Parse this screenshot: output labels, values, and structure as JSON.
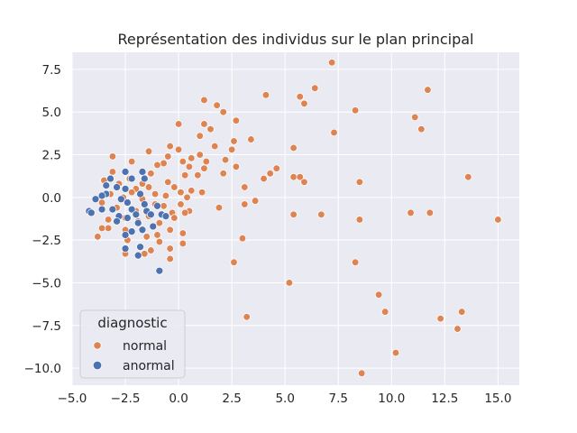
{
  "chart_data": {
    "type": "scatter",
    "title": "Représentation des individus sur le plan principal",
    "xlabel": "",
    "ylabel": "",
    "xlim": [
      -5.0,
      16.0
    ],
    "ylim": [
      -11.0,
      8.5
    ],
    "xticks": [
      -5.0,
      -2.5,
      0.0,
      2.5,
      5.0,
      7.5,
      10.0,
      12.5,
      15.0
    ],
    "xtick_labels": [
      "−5.0",
      "−2.5",
      "0.0",
      "2.5",
      "5.0",
      "7.5",
      "10.0",
      "12.5",
      "15.0"
    ],
    "yticks": [
      7.5,
      5.0,
      2.5,
      0.0,
      -2.5,
      -5.0,
      -7.5,
      -10.0
    ],
    "ytick_labels": [
      "7.5",
      "5.0",
      "2.5",
      "0.0",
      "−2.5",
      "−5.0",
      "−7.5",
      "−10.0"
    ],
    "grid": true,
    "background": "#eaeaf2",
    "legend": {
      "title": "diagnostic",
      "placement": "lower-left",
      "entries": [
        {
          "label": "normal",
          "color": "#dd8452"
        },
        {
          "label": "anormal",
          "color": "#4c72b0"
        }
      ]
    },
    "series": [
      {
        "name": "normal",
        "color": "#dd8452",
        "points": [
          [
            7.2,
            7.9
          ],
          [
            4.1,
            6.0
          ],
          [
            6.4,
            6.4
          ],
          [
            11.7,
            6.3
          ],
          [
            5.7,
            5.9
          ],
          [
            5.9,
            5.5
          ],
          [
            8.3,
            5.1
          ],
          [
            1.2,
            5.7
          ],
          [
            1.8,
            5.4
          ],
          [
            2.1,
            5.0
          ],
          [
            11.1,
            4.7
          ],
          [
            11.4,
            4.0
          ],
          [
            0.0,
            4.3
          ],
          [
            2.7,
            4.5
          ],
          [
            1.2,
            4.3
          ],
          [
            1.5,
            4.0
          ],
          [
            7.3,
            3.8
          ],
          [
            3.4,
            3.4
          ],
          [
            2.6,
            3.3
          ],
          [
            1.0,
            3.6
          ],
          [
            1.7,
            3.0
          ],
          [
            -0.4,
            3.0
          ],
          [
            0.0,
            2.8
          ],
          [
            5.4,
            2.9
          ],
          [
            2.5,
            2.8
          ],
          [
            -1.4,
            2.7
          ],
          [
            -3.1,
            2.4
          ],
          [
            -0.5,
            2.4
          ],
          [
            0.6,
            2.3
          ],
          [
            1.0,
            2.5
          ],
          [
            2.2,
            2.2
          ],
          [
            -2.2,
            2.1
          ],
          [
            1.3,
            2.1
          ],
          [
            -0.7,
            2.0
          ],
          [
            0.2,
            2.1
          ],
          [
            2.7,
            1.8
          ],
          [
            4.6,
            1.7
          ],
          [
            -1.0,
            1.9
          ],
          [
            0.5,
            1.8
          ],
          [
            1.2,
            1.7
          ],
          [
            -3.1,
            1.5
          ],
          [
            4.3,
            1.4
          ],
          [
            0.3,
            1.3
          ],
          [
            2.1,
            1.4
          ],
          [
            5.4,
            1.2
          ],
          [
            5.7,
            1.2
          ],
          [
            4.0,
            1.1
          ],
          [
            -3.5,
            1.0
          ],
          [
            -2.3,
            1.1
          ],
          [
            -1.3,
            1.4
          ],
          [
            0.9,
            1.3
          ],
          [
            5.9,
            0.9
          ],
          [
            8.5,
            0.9
          ],
          [
            13.6,
            1.2
          ],
          [
            -2.8,
            0.8
          ],
          [
            -1.7,
            0.8
          ],
          [
            -0.5,
            0.9
          ],
          [
            -0.2,
            0.6
          ],
          [
            -2.0,
            0.5
          ],
          [
            -1.4,
            0.6
          ],
          [
            0.6,
            0.4
          ],
          [
            3.1,
            0.6
          ],
          [
            -3.2,
            0.2
          ],
          [
            -2.2,
            0.3
          ],
          [
            -1.1,
            0.2
          ],
          [
            0.1,
            0.3
          ],
          [
            1.1,
            0.3
          ],
          [
            -2.6,
            0.0
          ],
          [
            -1.7,
            -0.1
          ],
          [
            -0.6,
            0.1
          ],
          [
            0.4,
            0.0
          ],
          [
            3.6,
            -0.2
          ],
          [
            -3.6,
            -0.3
          ],
          [
            -1.1,
            -0.4
          ],
          [
            0.1,
            -0.4
          ],
          [
            3.1,
            -0.4
          ],
          [
            1.9,
            -0.6
          ],
          [
            -2.9,
            -0.6
          ],
          [
            -2.0,
            -0.8
          ],
          [
            -0.7,
            -0.5
          ],
          [
            0.5,
            -0.8
          ],
          [
            5.4,
            -1.0
          ],
          [
            6.7,
            -1.0
          ],
          [
            10.9,
            -0.9
          ],
          [
            11.8,
            -0.9
          ],
          [
            -3.3,
            -1.3
          ],
          [
            -2.5,
            -1.2
          ],
          [
            -1.4,
            -1.1
          ],
          [
            -0.3,
            -0.9
          ],
          [
            0.3,
            -0.9
          ],
          [
            8.5,
            -1.3
          ],
          [
            15.0,
            -1.3
          ],
          [
            -3.3,
            -1.8
          ],
          [
            -1.9,
            -1.4
          ],
          [
            -0.9,
            -1.5
          ],
          [
            -0.2,
            -1.2
          ],
          [
            -3.6,
            -1.8
          ],
          [
            -2.5,
            -1.9
          ],
          [
            -1.0,
            -2.2
          ],
          [
            -0.4,
            -1.9
          ],
          [
            0.2,
            -2.1
          ],
          [
            -3.8,
            -2.3
          ],
          [
            -2.4,
            -2.5
          ],
          [
            -1.5,
            -2.3
          ],
          [
            -0.9,
            -2.6
          ],
          [
            3.0,
            -2.4
          ],
          [
            0.2,
            -2.7
          ],
          [
            -1.3,
            -3.1
          ],
          [
            -0.4,
            -3.0
          ],
          [
            -2.5,
            -3.3
          ],
          [
            -1.6,
            -3.3
          ],
          [
            -0.4,
            -3.6
          ],
          [
            2.6,
            -3.8
          ],
          [
            8.3,
            -3.8
          ],
          [
            5.2,
            -5.0
          ],
          [
            9.4,
            -5.7
          ],
          [
            9.7,
            -6.7
          ],
          [
            3.2,
            -7.0
          ],
          [
            12.3,
            -7.1
          ],
          [
            13.3,
            -6.7
          ],
          [
            13.1,
            -7.7
          ],
          [
            10.2,
            -9.1
          ],
          [
            8.6,
            -10.3
          ]
        ]
      },
      {
        "name": "anormal",
        "color": "#4c72b0",
        "points": [
          [
            -2.5,
            1.5
          ],
          [
            -3.2,
            1.1
          ],
          [
            -2.2,
            1.1
          ],
          [
            -1.7,
            1.5
          ],
          [
            -1.6,
            1.1
          ],
          [
            -3.4,
            0.7
          ],
          [
            -2.9,
            0.6
          ],
          [
            -2.5,
            0.5
          ],
          [
            -1.8,
            0.2
          ],
          [
            -3.4,
            0.2
          ],
          [
            -3.9,
            -0.1
          ],
          [
            -3.6,
            0.1
          ],
          [
            -2.7,
            -0.1
          ],
          [
            -2.4,
            -0.3
          ],
          [
            -1.6,
            -0.4
          ],
          [
            -1.0,
            -0.5
          ],
          [
            -3.1,
            -0.7
          ],
          [
            -2.2,
            -0.7
          ],
          [
            -1.5,
            -0.8
          ],
          [
            -3.6,
            -0.7
          ],
          [
            -4.2,
            -0.8
          ],
          [
            -4.1,
            -0.9
          ],
          [
            -2.8,
            -1.1
          ],
          [
            -2.4,
            -1.2
          ],
          [
            -2.9,
            -1.4
          ],
          [
            -2.0,
            -1.0
          ],
          [
            -1.3,
            -1.0
          ],
          [
            -0.8,
            -1.0
          ],
          [
            -0.6,
            -1.1
          ],
          [
            -1.9,
            -1.5
          ],
          [
            -1.2,
            -1.7
          ],
          [
            -2.5,
            -2.2
          ],
          [
            -2.2,
            -2.0
          ],
          [
            -1.7,
            -1.9
          ],
          [
            -2.5,
            -3.0
          ],
          [
            -1.8,
            -2.9
          ],
          [
            -1.9,
            -3.4
          ],
          [
            -0.9,
            -4.3
          ]
        ]
      }
    ]
  }
}
